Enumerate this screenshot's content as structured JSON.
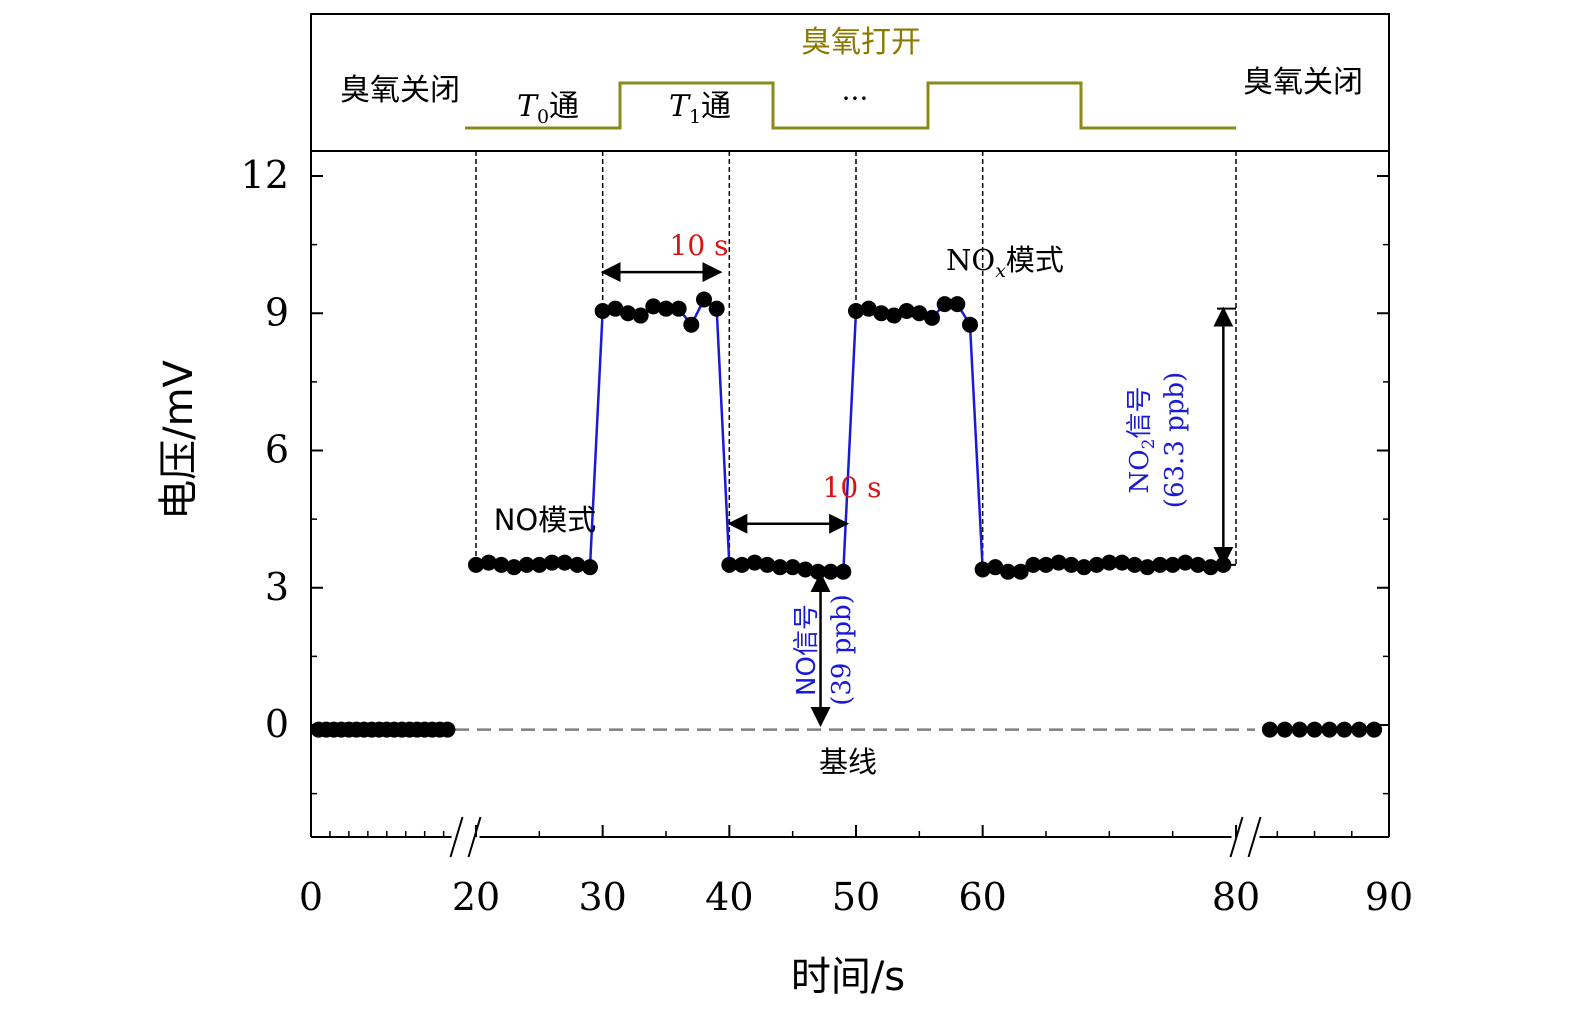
{
  "chart_data": {
    "type": "line",
    "xlabel": "时间/s",
    "ylabel": "电压/mV",
    "xlim": [
      0,
      90
    ],
    "ylim": [
      -2.5,
      12.5
    ],
    "x_ticks": [
      0,
      20,
      30,
      40,
      50,
      60,
      80,
      90
    ],
    "x_tick_labels": [
      "0",
      "20",
      "30",
      "40",
      "50",
      "60",
      "80",
      "90"
    ],
    "y_ticks": [
      0,
      3,
      6,
      9,
      12
    ],
    "y_tick_labels": [
      "0",
      "3",
      "6",
      "9",
      "12"
    ],
    "axis_breaks_x": [
      19,
      81
    ],
    "grid": false,
    "legend": "none",
    "colors": {
      "markers": "#000000",
      "connect_line": "#1a1ad6",
      "ozone_trace": "#8a8a1a",
      "ozone_label": "#8a7a00",
      "red_annotation": "#dd1111",
      "blue_annotation": "#1a1ad6",
      "baseline_dash": "#808080"
    },
    "series": [
      {
        "x": [
          1,
          2,
          3,
          4,
          5,
          6,
          7,
          8,
          9,
          10,
          11,
          12,
          13,
          14,
          15,
          16,
          17,
          18,
          20,
          21,
          22,
          23,
          24,
          25,
          26,
          27,
          28,
          29,
          30,
          31,
          32,
          33,
          34,
          35,
          36,
          37,
          38,
          39,
          40,
          41,
          42,
          43,
          44,
          45,
          46,
          47,
          48,
          49,
          50,
          51,
          52,
          53,
          54,
          55,
          56,
          57,
          58,
          59,
          60,
          61,
          62,
          63,
          64,
          65,
          66,
          67,
          68,
          69,
          70,
          71,
          72,
          73,
          74,
          75,
          76,
          77,
          78,
          79,
          82,
          83,
          84,
          85,
          86,
          87,
          88,
          89
        ],
        "y": [
          -0.1,
          -0.1,
          -0.1,
          -0.1,
          -0.1,
          -0.1,
          -0.1,
          -0.1,
          -0.1,
          -0.1,
          -0.1,
          -0.1,
          -0.1,
          -0.1,
          -0.1,
          -0.1,
          -0.1,
          -0.1,
          3.5,
          3.55,
          3.5,
          3.45,
          3.5,
          3.5,
          3.55,
          3.55,
          3.5,
          3.45,
          9.05,
          9.1,
          9.0,
          8.95,
          9.15,
          9.1,
          9.1,
          8.75,
          9.3,
          9.1,
          3.5,
          3.5,
          3.55,
          3.5,
          3.45,
          3.45,
          3.4,
          3.35,
          3.35,
          3.35,
          9.05,
          9.1,
          9.0,
          8.95,
          9.05,
          9.0,
          8.9,
          9.2,
          9.2,
          8.75,
          3.4,
          3.45,
          3.35,
          3.35,
          3.5,
          3.5,
          3.55,
          3.5,
          3.45,
          3.5,
          3.55,
          3.55,
          3.5,
          3.45,
          3.5,
          3.5,
          3.55,
          3.5,
          3.45,
          3.5,
          -0.1,
          -0.1,
          -0.1,
          -0.1,
          -0.1,
          -0.1,
          -0.1,
          -0.1
        ]
      }
    ],
    "annotations": {
      "ozone_on": "臭氧打开",
      "ozone_off_left": "臭氧关闭",
      "ozone_off_right": "臭氧关闭",
      "t0_T": "T",
      "t0_sub": "0",
      "t0_suffix": "通",
      "t1_T": "T",
      "t1_sub": "1",
      "t1_suffix": "通",
      "ellipsis": "···",
      "no_mode": "NO模式",
      "nox_mode_prefix": "NO",
      "nox_mode_sub": "x",
      "nox_mode_suffix": "模式",
      "ten_s_1": "10 s",
      "ten_s_2": "10 s",
      "no_signal_line1": "NO信号",
      "no_signal_line2": "(39 ppb)",
      "no2_signal_prefix": "NO",
      "no2_signal_sub": "2",
      "no2_signal_suffix": "信号",
      "no2_signal_line2": "(63.3 ppb)",
      "baseline": "基线"
    }
  }
}
